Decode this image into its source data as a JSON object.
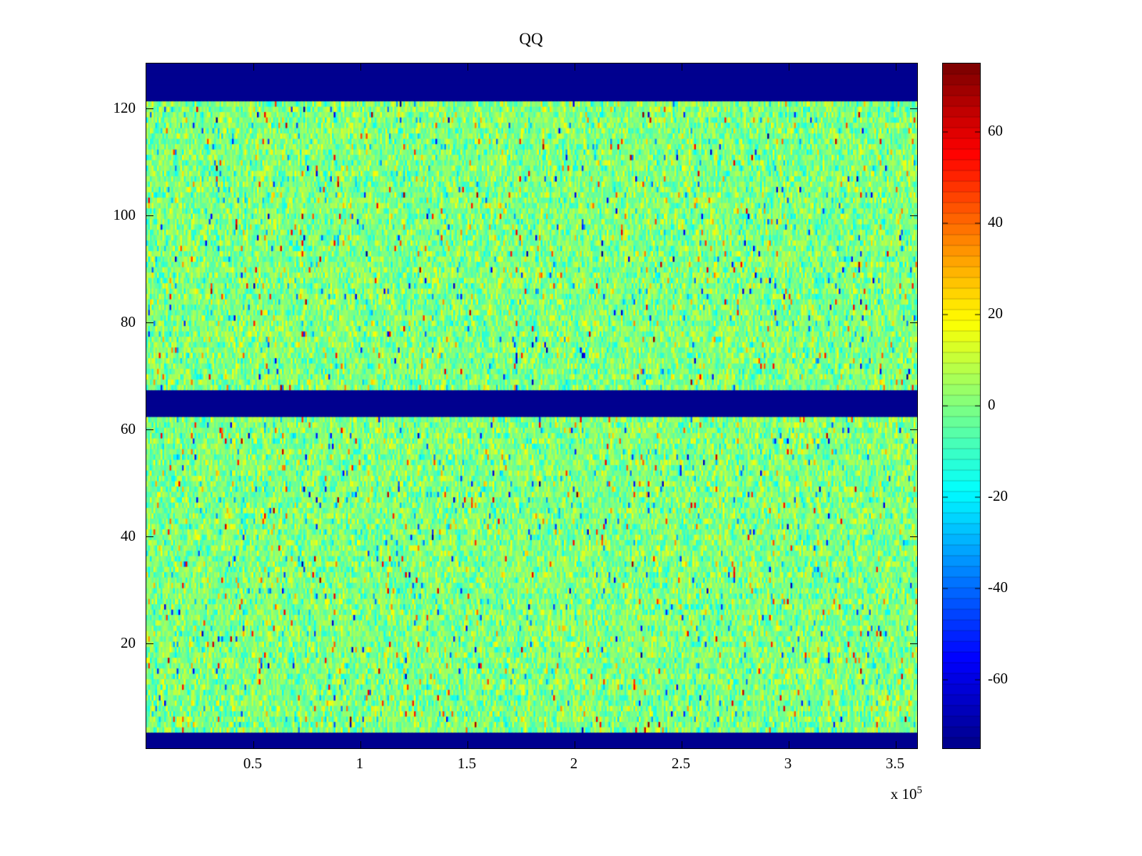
{
  "figure": {
    "background_color": "#FFFFFF",
    "axes_color": "#000000"
  },
  "chart_data": {
    "type": "heatmap",
    "title": "QQ",
    "x_range": [
      0,
      360000
    ],
    "x_ticks": [
      {
        "value": 50000,
        "label": "0.5"
      },
      {
        "value": 100000,
        "label": "1"
      },
      {
        "value": 150000,
        "label": "1.5"
      },
      {
        "value": 200000,
        "label": "2"
      },
      {
        "value": 250000,
        "label": "2.5"
      },
      {
        "value": 300000,
        "label": "3"
      },
      {
        "value": 350000,
        "label": "3.5"
      }
    ],
    "x_exponent": {
      "base": "x 10",
      "exp": "5"
    },
    "y_range": [
      0.5,
      128.5
    ],
    "y_ticks": [
      {
        "value": 20,
        "label": "20"
      },
      {
        "value": 40,
        "label": "40"
      },
      {
        "value": 60,
        "label": "60"
      },
      {
        "value": 80,
        "label": "80"
      },
      {
        "value": 100,
        "label": "100"
      },
      {
        "value": 120,
        "label": "120"
      }
    ],
    "rows": 128,
    "display_cols": 432,
    "color_range": [
      -75,
      75
    ],
    "grid": false,
    "legend": "colorbar-right",
    "colormap": {
      "name": "jet",
      "stops": [
        {
          "pos": 0,
          "color": "#00008F"
        },
        {
          "pos": 0.125,
          "color": "#0000FF"
        },
        {
          "pos": 0.375,
          "color": "#00FFFF"
        },
        {
          "pos": 0.625,
          "color": "#FFFF00"
        },
        {
          "pos": 0.875,
          "color": "#FF0000"
        },
        {
          "pos": 1,
          "color": "#800000"
        }
      ]
    },
    "noise": {
      "mean": 0,
      "std": 9,
      "outlier_prob": 0.035,
      "outlier_min": 15,
      "outlier_max": 60,
      "seed": 1337
    },
    "solid_bands": [
      {
        "row_from": 1,
        "row_to": 3,
        "value": -75
      },
      {
        "row_from": 63,
        "row_to": 67,
        "value": -75
      },
      {
        "row_from": 122,
        "row_to": 128,
        "value": -75
      }
    ],
    "colorbar": {
      "range": [
        -75,
        75
      ],
      "segments": 64,
      "ticks": [
        {
          "value": 60,
          "label": "60"
        },
        {
          "value": 40,
          "label": "40"
        },
        {
          "value": 20,
          "label": "20"
        },
        {
          "value": 0,
          "label": "0"
        },
        {
          "value": -20,
          "label": "-20"
        },
        {
          "value": -40,
          "label": "-40"
        },
        {
          "value": -60,
          "label": "-60"
        }
      ]
    }
  }
}
